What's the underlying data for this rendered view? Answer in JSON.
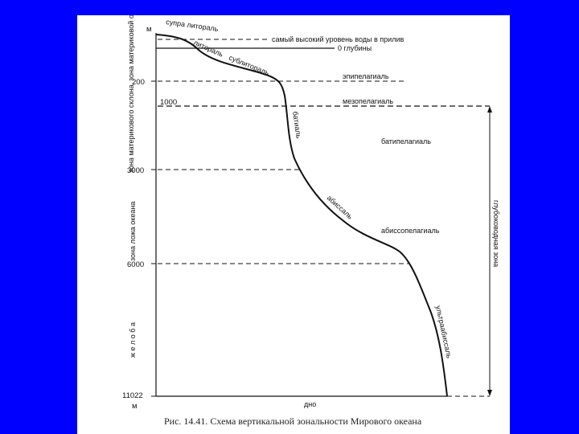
{
  "colors": {
    "background": "#0000ff",
    "paper": "#ffffff",
    "ink": "#111111"
  },
  "labels": {
    "unit_top": "м",
    "unit_bottom": "м",
    "depth_200": "200",
    "depth_1000": "1000",
    "depth_3000": "3000",
    "depth_6000": "6000",
    "depth_11022": "11022",
    "line_high_water": "самый высокий уровень воды в прилив",
    "line_zero": "0 глубины",
    "zone_epipelagial": "эпипелагиаль",
    "zone_mesopelagial": "мезопелагиаль",
    "zone_bathypelagial": "батипелагиаль",
    "zone_abyssopelagial": "абиссопелагиаль",
    "bottom": "дно",
    "deep_water_zone": "глубоководная зона",
    "curve_supralittoral": "супра литораль",
    "curve_littoral": "литораль",
    "curve_sublittoral": "сублитораль",
    "curve_bathyal": "батиаль",
    "curve_abyssal": "абиссаль",
    "curve_ultraabyssal": "ультраабиссаль",
    "side_shelf": "зона материковой отмели",
    "side_slope": "зона материкового склона",
    "side_ocean_bed": "зона ложа океана",
    "side_trench": "ж е л о б а",
    "caption": "Рис. 14.41. Схема вертикальной зональности Мирового океана"
  }
}
